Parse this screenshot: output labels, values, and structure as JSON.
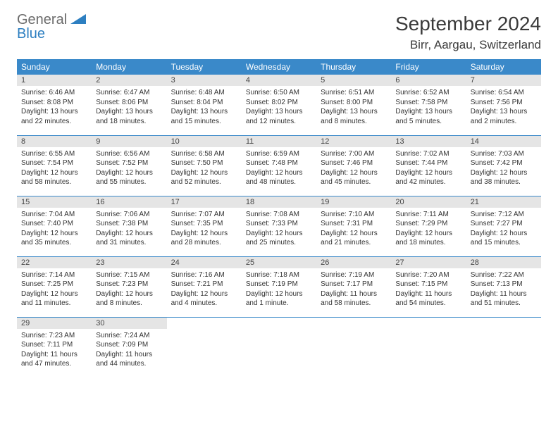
{
  "brand": {
    "word1": "General",
    "word2": "Blue"
  },
  "title": {
    "month": "September 2024",
    "location": "Birr, Aargau, Switzerland"
  },
  "colors": {
    "header_bg": "#3a89c9",
    "header_text": "#ffffff",
    "daynum_bg": "#e5e5e5",
    "row_divider": "#3a89c9",
    "logo_gray": "#6b6b6b",
    "logo_blue": "#2d7fc1",
    "text": "#333333",
    "background": "#ffffff"
  },
  "columns": [
    "Sunday",
    "Monday",
    "Tuesday",
    "Wednesday",
    "Thursday",
    "Friday",
    "Saturday"
  ],
  "weeks": [
    [
      {
        "n": 1,
        "sr": "6:46 AM",
        "ss": "8:08 PM",
        "dl": "13 hours and 22 minutes."
      },
      {
        "n": 2,
        "sr": "6:47 AM",
        "ss": "8:06 PM",
        "dl": "13 hours and 18 minutes."
      },
      {
        "n": 3,
        "sr": "6:48 AM",
        "ss": "8:04 PM",
        "dl": "13 hours and 15 minutes."
      },
      {
        "n": 4,
        "sr": "6:50 AM",
        "ss": "8:02 PM",
        "dl": "13 hours and 12 minutes."
      },
      {
        "n": 5,
        "sr": "6:51 AM",
        "ss": "8:00 PM",
        "dl": "13 hours and 8 minutes."
      },
      {
        "n": 6,
        "sr": "6:52 AM",
        "ss": "7:58 PM",
        "dl": "13 hours and 5 minutes."
      },
      {
        "n": 7,
        "sr": "6:54 AM",
        "ss": "7:56 PM",
        "dl": "13 hours and 2 minutes."
      }
    ],
    [
      {
        "n": 8,
        "sr": "6:55 AM",
        "ss": "7:54 PM",
        "dl": "12 hours and 58 minutes."
      },
      {
        "n": 9,
        "sr": "6:56 AM",
        "ss": "7:52 PM",
        "dl": "12 hours and 55 minutes."
      },
      {
        "n": 10,
        "sr": "6:58 AM",
        "ss": "7:50 PM",
        "dl": "12 hours and 52 minutes."
      },
      {
        "n": 11,
        "sr": "6:59 AM",
        "ss": "7:48 PM",
        "dl": "12 hours and 48 minutes."
      },
      {
        "n": 12,
        "sr": "7:00 AM",
        "ss": "7:46 PM",
        "dl": "12 hours and 45 minutes."
      },
      {
        "n": 13,
        "sr": "7:02 AM",
        "ss": "7:44 PM",
        "dl": "12 hours and 42 minutes."
      },
      {
        "n": 14,
        "sr": "7:03 AM",
        "ss": "7:42 PM",
        "dl": "12 hours and 38 minutes."
      }
    ],
    [
      {
        "n": 15,
        "sr": "7:04 AM",
        "ss": "7:40 PM",
        "dl": "12 hours and 35 minutes."
      },
      {
        "n": 16,
        "sr": "7:06 AM",
        "ss": "7:38 PM",
        "dl": "12 hours and 31 minutes."
      },
      {
        "n": 17,
        "sr": "7:07 AM",
        "ss": "7:35 PM",
        "dl": "12 hours and 28 minutes."
      },
      {
        "n": 18,
        "sr": "7:08 AM",
        "ss": "7:33 PM",
        "dl": "12 hours and 25 minutes."
      },
      {
        "n": 19,
        "sr": "7:10 AM",
        "ss": "7:31 PM",
        "dl": "12 hours and 21 minutes."
      },
      {
        "n": 20,
        "sr": "7:11 AM",
        "ss": "7:29 PM",
        "dl": "12 hours and 18 minutes."
      },
      {
        "n": 21,
        "sr": "7:12 AM",
        "ss": "7:27 PM",
        "dl": "12 hours and 15 minutes."
      }
    ],
    [
      {
        "n": 22,
        "sr": "7:14 AM",
        "ss": "7:25 PM",
        "dl": "12 hours and 11 minutes."
      },
      {
        "n": 23,
        "sr": "7:15 AM",
        "ss": "7:23 PM",
        "dl": "12 hours and 8 minutes."
      },
      {
        "n": 24,
        "sr": "7:16 AM",
        "ss": "7:21 PM",
        "dl": "12 hours and 4 minutes."
      },
      {
        "n": 25,
        "sr": "7:18 AM",
        "ss": "7:19 PM",
        "dl": "12 hours and 1 minute."
      },
      {
        "n": 26,
        "sr": "7:19 AM",
        "ss": "7:17 PM",
        "dl": "11 hours and 58 minutes."
      },
      {
        "n": 27,
        "sr": "7:20 AM",
        "ss": "7:15 PM",
        "dl": "11 hours and 54 minutes."
      },
      {
        "n": 28,
        "sr": "7:22 AM",
        "ss": "7:13 PM",
        "dl": "11 hours and 51 minutes."
      }
    ],
    [
      {
        "n": 29,
        "sr": "7:23 AM",
        "ss": "7:11 PM",
        "dl": "11 hours and 47 minutes."
      },
      {
        "n": 30,
        "sr": "7:24 AM",
        "ss": "7:09 PM",
        "dl": "11 hours and 44 minutes."
      },
      null,
      null,
      null,
      null,
      null
    ]
  ],
  "labels": {
    "sunrise": "Sunrise:",
    "sunset": "Sunset:",
    "daylight": "Daylight:"
  }
}
